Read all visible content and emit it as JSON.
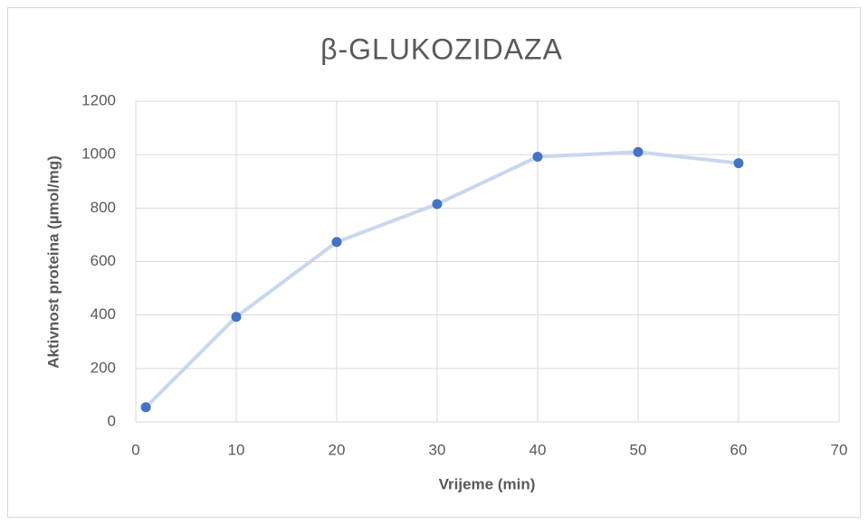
{
  "chart_data": {
    "type": "line",
    "title": "β-GLUKOZIDAZA",
    "x_label": "Vrijeme (min)",
    "y_label": "Aktivnost proteina (µmol/mg)",
    "x": [
      1,
      10,
      20,
      30,
      40,
      50,
      60
    ],
    "series": [
      {
        "name": "β-glukozidaza",
        "color": "#4472c4",
        "line_color": "#c9d7ee",
        "values": [
          55,
          393,
          673,
          815,
          992,
          1010,
          968
        ]
      }
    ],
    "xlim": [
      0,
      70
    ],
    "xticks": [
      0,
      10,
      20,
      30,
      40,
      50,
      60,
      70
    ],
    "ylim": [
      0,
      1200
    ],
    "yticks": [
      0,
      200,
      400,
      600,
      800,
      1000,
      1200
    ],
    "grid": true
  }
}
